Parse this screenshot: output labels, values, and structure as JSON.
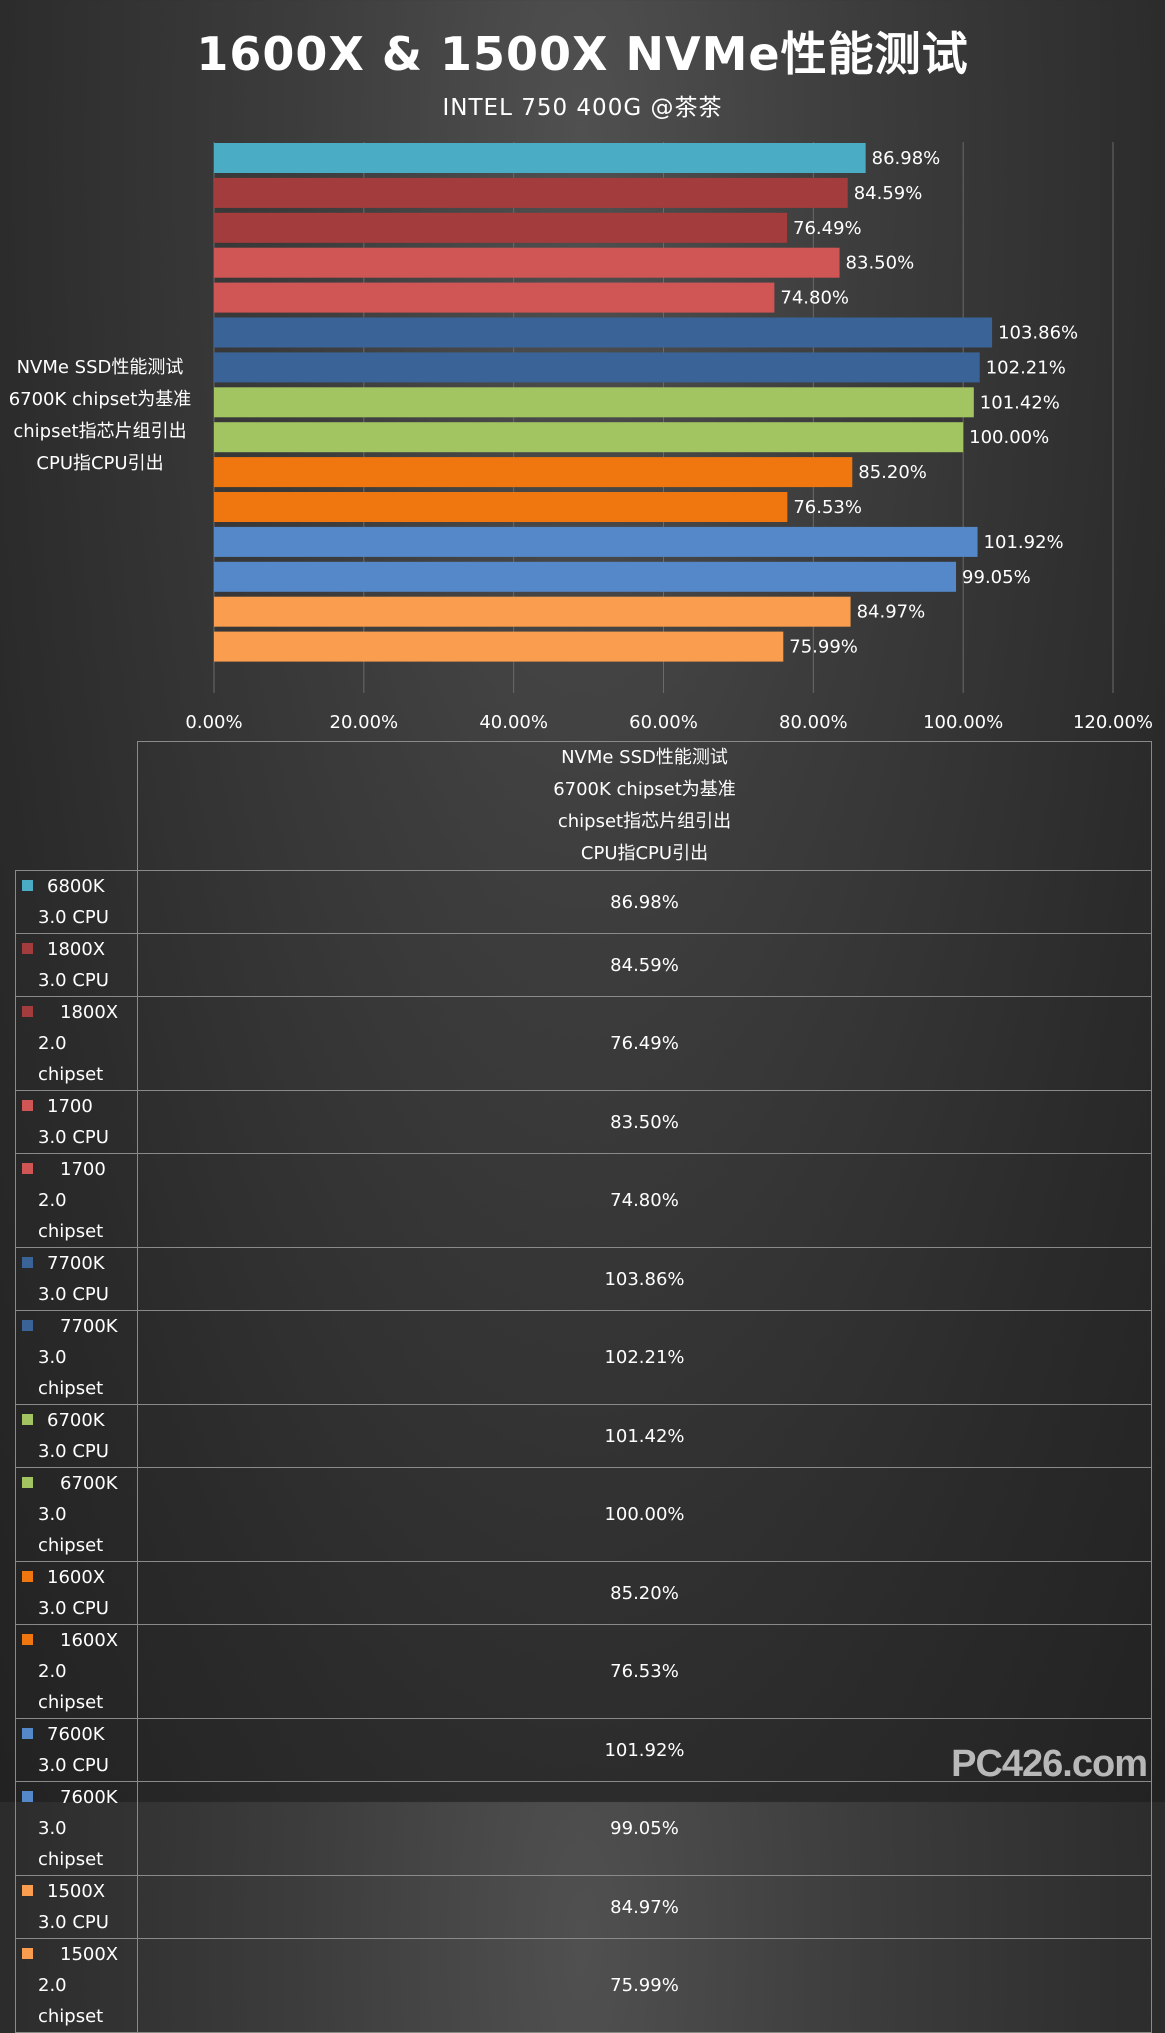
{
  "chart_data": {
    "type": "bar",
    "orientation": "horizontal",
    "title": "1600X & 1500X NVMe性能测试",
    "subtitle": "INTEL 750 400G @茶茶",
    "series_name_lines": [
      "NVMe SSD性能测试",
      "6700K chipset为基准",
      "chipset指芯片组引出",
      "CPU指CPU引出"
    ],
    "xlim": [
      0,
      120
    ],
    "x_ticks": [
      "0.00%",
      "20.00%",
      "40.00%",
      "60.00%",
      "80.00%",
      "100.00%",
      "120.00%"
    ],
    "grid": "vertical",
    "categories": [
      {
        "line1": "6800K",
        "line2": "3.0 CPU",
        "color": "#4bacc6",
        "value": 86.98,
        "label": "86.98%"
      },
      {
        "line1": "1800X",
        "line2": "3.0 CPU",
        "color": "#a33c3c",
        "value": 84.59,
        "label": "84.59%"
      },
      {
        "line1": "1800X",
        "line2": "2.0 chipset",
        "color": "#a33c3c",
        "value": 76.49,
        "label": "76.49%"
      },
      {
        "line1": "1700",
        "line2": "3.0 CPU",
        "color": "#d05555",
        "value": 83.5,
        "label": "83.50%"
      },
      {
        "line1": "1700",
        "line2": "2.0 chipset",
        "color": "#d05555",
        "value": 74.8,
        "label": "74.80%"
      },
      {
        "line1": "7700K",
        "line2": "3.0 CPU",
        "color": "#3a6398",
        "value": 103.86,
        "label": "103.86%"
      },
      {
        "line1": "7700K",
        "line2": "3.0 chipset",
        "color": "#3a6398",
        "value": 102.21,
        "label": "102.21%"
      },
      {
        "line1": "6700K",
        "line2": "3.0 CPU",
        "color": "#a3c561",
        "value": 101.42,
        "label": "101.42%"
      },
      {
        "line1": "6700K",
        "line2": "3.0 chipset",
        "color": "#a3c561",
        "value": 100.0,
        "label": "100.00%"
      },
      {
        "line1": "1600X",
        "line2": "3.0 CPU",
        "color": "#f0770f",
        "value": 85.2,
        "label": "85.20%"
      },
      {
        "line1": "1600X",
        "line2": "2.0 chipset",
        "color": "#f0770f",
        "value": 76.53,
        "label": "76.53%"
      },
      {
        "line1": "7600K",
        "line2": "3.0 CPU",
        "color": "#5588c8",
        "value": 101.92,
        "label": "101.92%"
      },
      {
        "line1": "7600K",
        "line2": "3.0 chipset",
        "color": "#5588c8",
        "value": 99.05,
        "label": "99.05%"
      },
      {
        "line1": "1500X",
        "line2": "3.0 CPU",
        "color": "#fa9d4e",
        "value": 84.97,
        "label": "84.97%"
      },
      {
        "line1": "1500X",
        "line2": "2.0 chipset",
        "color": "#fa9d4e",
        "value": 75.99,
        "label": "75.99%"
      }
    ]
  },
  "watermark": "PC426.com"
}
